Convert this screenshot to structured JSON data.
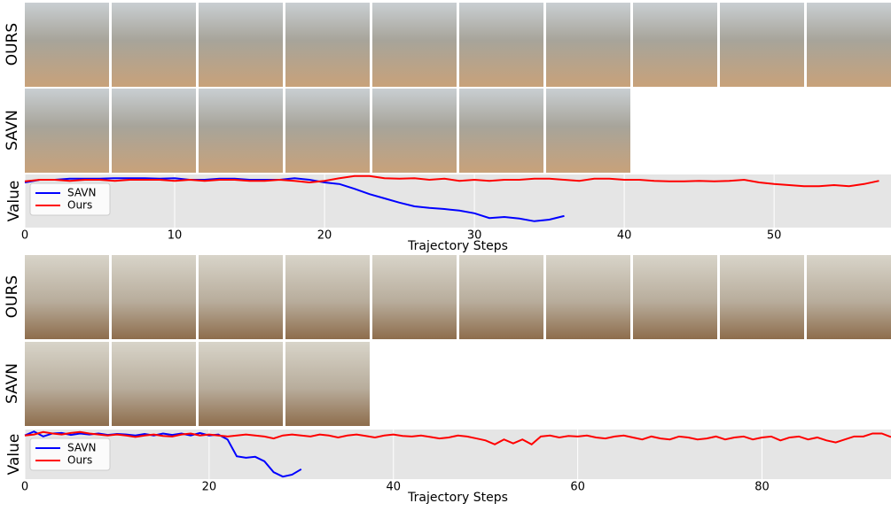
{
  "figure": {
    "panels": [
      {
        "rows": [
          "OURS",
          "SAVN"
        ]
      },
      {
        "rows": [
          "OURS",
          "SAVN"
        ]
      }
    ]
  },
  "chart_data": [
    {
      "type": "line",
      "xlabel": "Trajectory Steps",
      "ylabel": "Value",
      "xlim": [
        0,
        57.8
      ],
      "xticks": [
        0,
        10,
        20,
        30,
        40,
        50
      ],
      "ylim": [
        0,
        1
      ],
      "grid": true,
      "legend": "upper left",
      "series": [
        {
          "name": "SAVN",
          "color": "#0000ff",
          "x": [
            0,
            1,
            2,
            3,
            4,
            5,
            6,
            7,
            8,
            9,
            10,
            11,
            12,
            13,
            14,
            15,
            16,
            17,
            18,
            19,
            20,
            21,
            22,
            23,
            24,
            25,
            26,
            27,
            28,
            29,
            30,
            31,
            32,
            33,
            34,
            35,
            36
          ],
          "values": [
            0.85,
            0.9,
            0.9,
            0.92,
            0.92,
            0.92,
            0.93,
            0.93,
            0.93,
            0.92,
            0.93,
            0.9,
            0.9,
            0.92,
            0.92,
            0.9,
            0.9,
            0.9,
            0.93,
            0.9,
            0.85,
            0.82,
            0.73,
            0.63,
            0.55,
            0.47,
            0.4,
            0.37,
            0.35,
            0.32,
            0.27,
            0.18,
            0.2,
            0.17,
            0.12,
            0.15,
            0.22
          ]
        },
        {
          "name": "Ours",
          "color": "#ff0000",
          "x": [
            0,
            1,
            2,
            3,
            4,
            5,
            6,
            7,
            8,
            9,
            10,
            11,
            12,
            13,
            14,
            15,
            16,
            17,
            18,
            19,
            20,
            21,
            22,
            23,
            24,
            25,
            26,
            27,
            28,
            29,
            30,
            31,
            32,
            33,
            34,
            35,
            36,
            37,
            38,
            39,
            40,
            41,
            42,
            43,
            44,
            45,
            46,
            47,
            48,
            49,
            50,
            51,
            52,
            53,
            54,
            55,
            56,
            57
          ],
          "values": [
            0.87,
            0.9,
            0.9,
            0.88,
            0.9,
            0.9,
            0.88,
            0.9,
            0.9,
            0.9,
            0.88,
            0.9,
            0.88,
            0.9,
            0.9,
            0.88,
            0.88,
            0.9,
            0.88,
            0.85,
            0.88,
            0.93,
            0.97,
            0.97,
            0.93,
            0.92,
            0.93,
            0.9,
            0.92,
            0.88,
            0.9,
            0.88,
            0.9,
            0.9,
            0.92,
            0.92,
            0.9,
            0.88,
            0.92,
            0.92,
            0.9,
            0.9,
            0.88,
            0.87,
            0.87,
            0.88,
            0.87,
            0.88,
            0.9,
            0.85,
            0.82,
            0.8,
            0.78,
            0.78,
            0.8,
            0.78,
            0.82,
            0.88
          ]
        }
      ]
    },
    {
      "type": "line",
      "xlabel": "Trajectory Steps",
      "ylabel": "Value",
      "xlim": [
        0,
        94
      ],
      "xticks": [
        0,
        20,
        40,
        60,
        80
      ],
      "ylim": [
        0,
        1
      ],
      "grid": true,
      "legend": "upper left",
      "series": [
        {
          "name": "SAVN",
          "color": "#0000ff",
          "x": [
            0,
            1,
            2,
            3,
            4,
            5,
            6,
            7,
            8,
            9,
            10,
            11,
            12,
            13,
            14,
            15,
            16,
            17,
            18,
            19,
            20,
            21,
            22,
            23,
            24,
            25,
            26,
            27,
            28,
            29,
            30
          ],
          "values": [
            0.88,
            0.96,
            0.86,
            0.92,
            0.93,
            0.89,
            0.92,
            0.9,
            0.92,
            0.89,
            0.91,
            0.9,
            0.88,
            0.91,
            0.88,
            0.92,
            0.89,
            0.92,
            0.88,
            0.93,
            0.88,
            0.9,
            0.8,
            0.46,
            0.43,
            0.45,
            0.36,
            0.14,
            0.05,
            0.09,
            0.2
          ]
        },
        {
          "name": "Ours",
          "color": "#ff0000",
          "x": [
            0,
            1,
            2,
            3,
            4,
            5,
            6,
            7,
            8,
            9,
            10,
            11,
            12,
            13,
            14,
            15,
            16,
            17,
            18,
            19,
            20,
            21,
            22,
            23,
            24,
            25,
            26,
            27,
            28,
            29,
            30,
            31,
            32,
            33,
            34,
            35,
            36,
            37,
            38,
            39,
            40,
            41,
            42,
            43,
            44,
            45,
            46,
            47,
            48,
            49,
            50,
            51,
            52,
            53,
            54,
            55,
            56,
            57,
            58,
            59,
            60,
            61,
            62,
            63,
            64,
            65,
            66,
            67,
            68,
            69,
            70,
            71,
            72,
            73,
            74,
            75,
            76,
            77,
            78,
            79,
            80,
            81,
            82,
            83,
            84,
            85,
            86,
            87,
            88,
            89,
            90,
            91,
            92,
            93,
            94
          ],
          "values": [
            0.88,
            0.9,
            0.95,
            0.92,
            0.9,
            0.93,
            0.95,
            0.92,
            0.9,
            0.88,
            0.9,
            0.88,
            0.85,
            0.88,
            0.9,
            0.87,
            0.86,
            0.9,
            0.92,
            0.88,
            0.9,
            0.88,
            0.86,
            0.88,
            0.9,
            0.88,
            0.86,
            0.82,
            0.88,
            0.9,
            0.88,
            0.86,
            0.9,
            0.88,
            0.84,
            0.88,
            0.9,
            0.87,
            0.84,
            0.88,
            0.9,
            0.87,
            0.86,
            0.88,
            0.85,
            0.82,
            0.84,
            0.88,
            0.86,
            0.82,
            0.78,
            0.7,
            0.8,
            0.72,
            0.8,
            0.7,
            0.86,
            0.88,
            0.84,
            0.87,
            0.86,
            0.88,
            0.84,
            0.82,
            0.86,
            0.88,
            0.84,
            0.8,
            0.86,
            0.82,
            0.8,
            0.86,
            0.84,
            0.8,
            0.82,
            0.86,
            0.8,
            0.84,
            0.86,
            0.8,
            0.84,
            0.86,
            0.78,
            0.84,
            0.86,
            0.8,
            0.84,
            0.78,
            0.74,
            0.8,
            0.86,
            0.86,
            0.92,
            0.92,
            0.85
          ]
        }
      ]
    }
  ]
}
